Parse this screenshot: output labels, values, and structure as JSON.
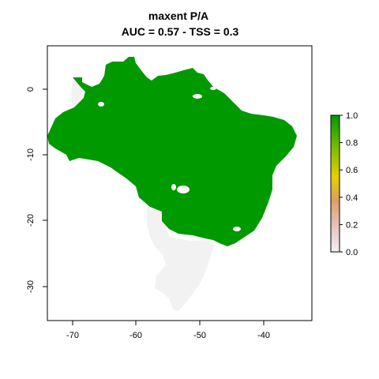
{
  "title": {
    "line1": "maxent P/A",
    "line2": "AUC = 0.57 - TSS = 0.3"
  },
  "colors": {
    "presence": "#009900",
    "absence": "#f2f2f2",
    "frame": "#000000"
  },
  "axes": {
    "x_ticks": [
      "-70",
      "-60",
      "-50",
      "-40"
    ],
    "y_ticks": [
      "0",
      "-10",
      "-20",
      "-30"
    ]
  },
  "legend": {
    "labels": [
      "1.0",
      "0.8",
      "0.6",
      "0.4",
      "0.2",
      "0.0"
    ],
    "gradient": [
      "#009900",
      "#7fbf00",
      "#e6d000",
      "#d9a060",
      "#e8c4c0",
      "#f2f2f2"
    ]
  },
  "chart_data": {
    "type": "heatmap",
    "title": "maxent P/A\nAUC = 0.57 - TSS = 0.3",
    "xlim": [
      -74,
      -34
    ],
    "ylim": [
      -35,
      6
    ],
    "x_ticks": [
      -70,
      -60,
      -50,
      -40
    ],
    "y_ticks": [
      0,
      -10,
      -20,
      -30
    ],
    "legend_range": [
      0.0,
      1.0
    ],
    "legend_placement": "right",
    "classes": [
      {
        "value": 1,
        "color": "#009900"
      },
      {
        "value": 0,
        "color": "#f2f2f2"
      }
    ]
  }
}
